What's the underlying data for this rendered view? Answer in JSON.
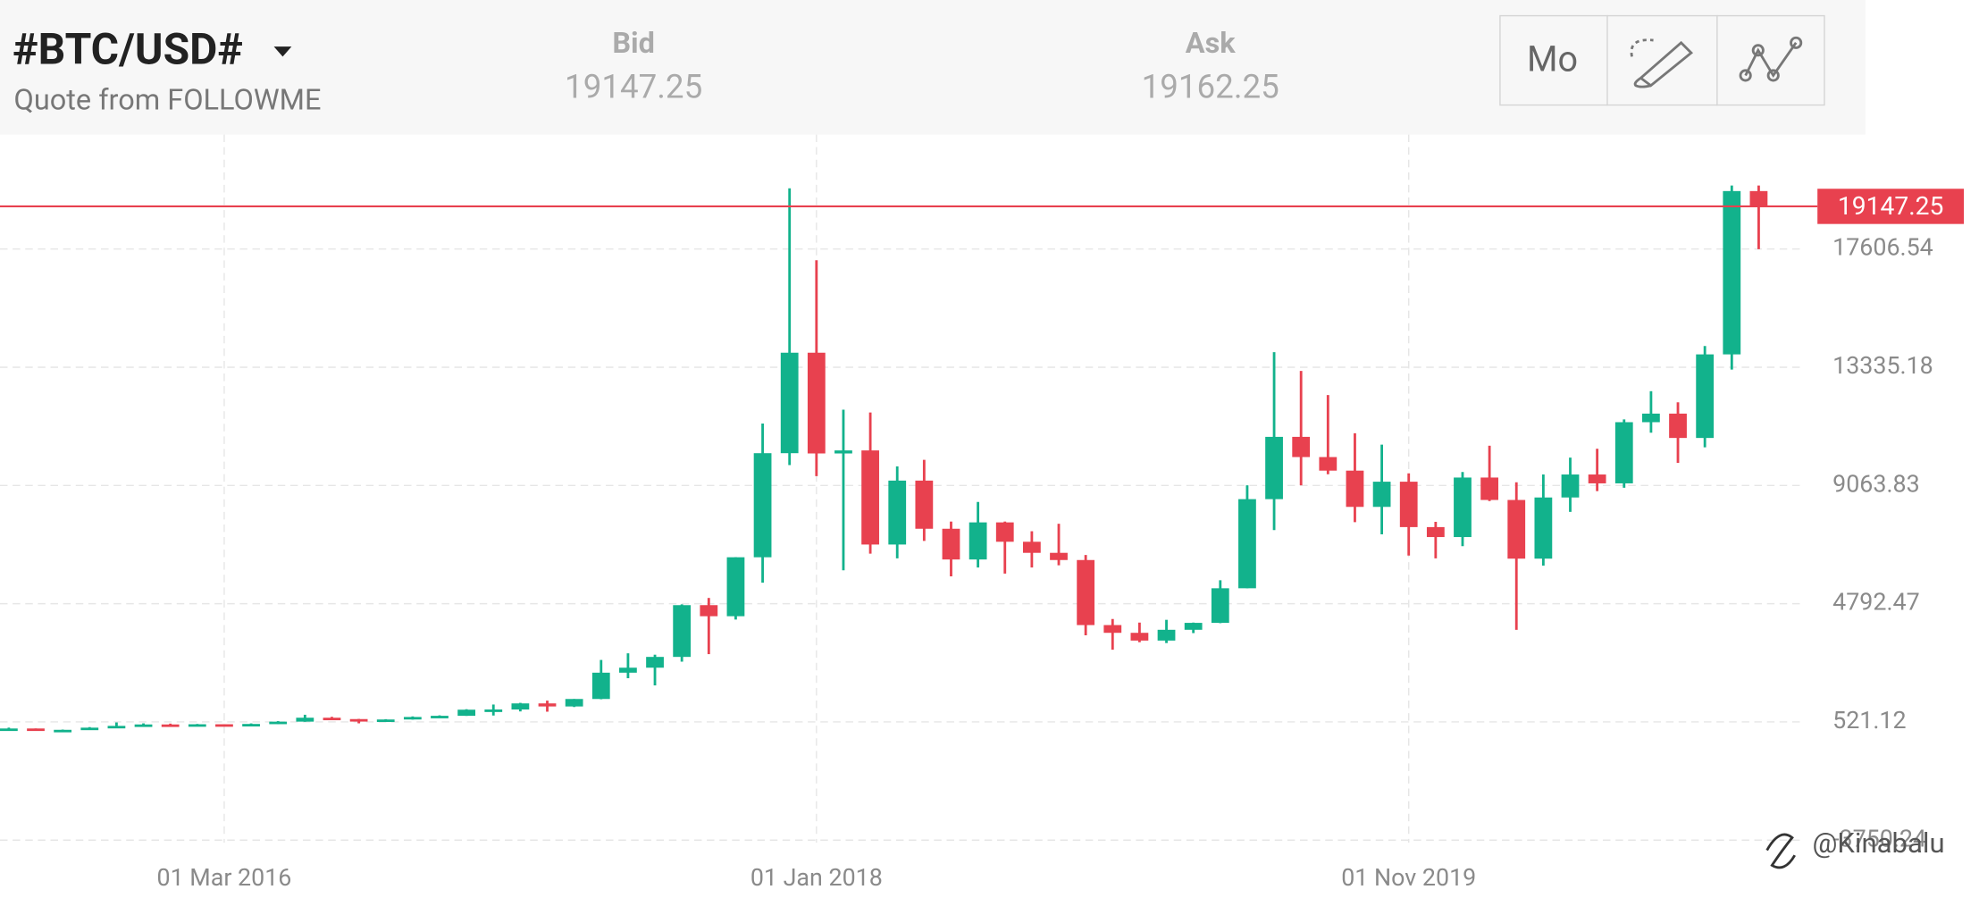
{
  "header": {
    "title": "#BTC/USD#",
    "subtitle": "Quote from FOLLOWME",
    "bid_label": "Bid",
    "bid": 19147.25,
    "ask_label": "Ask",
    "ask": 19162.25,
    "timeframe": "Mo"
  },
  "watermark": "@Kinabalu",
  "chart_data": {
    "type": "candlestick",
    "x": [
      "2015-07-01",
      "2015-08-01",
      "2015-09-01",
      "2015-10-01",
      "2015-11-01",
      "2015-12-01",
      "2016-01-01",
      "2016-02-01",
      "2016-03-01",
      "2016-04-01",
      "2016-05-01",
      "2016-06-01",
      "2016-07-01",
      "2016-08-01",
      "2016-09-01",
      "2016-10-01",
      "2016-11-01",
      "2016-12-01",
      "2017-01-01",
      "2017-02-01",
      "2017-03-01",
      "2017-04-01",
      "2017-05-01",
      "2017-06-01",
      "2017-07-01",
      "2017-08-01",
      "2017-09-01",
      "2017-10-01",
      "2017-11-01",
      "2017-12-01",
      "2018-01-01",
      "2018-02-01",
      "2018-03-01",
      "2018-04-01",
      "2018-05-01",
      "2018-06-01",
      "2018-07-01",
      "2018-08-01",
      "2018-09-01",
      "2018-10-01",
      "2018-11-01",
      "2018-12-01",
      "2019-01-01",
      "2019-02-01",
      "2019-03-01",
      "2019-04-01",
      "2019-05-01",
      "2019-06-01",
      "2019-07-01",
      "2019-08-01",
      "2019-09-01",
      "2019-10-01",
      "2019-11-01",
      "2019-12-01",
      "2020-01-01",
      "2020-02-01",
      "2020-03-01",
      "2020-04-01",
      "2020-05-01",
      "2020-06-01",
      "2020-07-01",
      "2020-08-01",
      "2020-09-01",
      "2020-10-01",
      "2020-11-01",
      "2020-12-01"
    ],
    "open": [
      263,
      284,
      230,
      236,
      314,
      378,
      430,
      369,
      437,
      416,
      448,
      531,
      673,
      624,
      574,
      609,
      700,
      742,
      963,
      970,
      1190,
      1080,
      1350,
      2300,
      2480,
      2870,
      4740,
      4340,
      6470,
      10230,
      13860,
      10220,
      10330,
      6930,
      9240,
      7500,
      6390,
      7730,
      7030,
      6630,
      6370,
      4020,
      3740,
      3460,
      3850,
      4100,
      5350,
      8570,
      10820,
      10090,
      9600,
      8290,
      9200,
      7560,
      7200,
      9350,
      8540,
      6420,
      8630,
      9460,
      9140,
      11350,
      11660,
      10780,
      13800,
      19700
    ],
    "high": [
      315,
      285,
      245,
      334,
      502,
      469,
      460,
      448,
      439,
      467,
      550,
      780,
      705,
      630,
      620,
      720,
      758,
      980,
      1150,
      1210,
      1290,
      1350,
      2760,
      3000,
      2950,
      4770,
      5000,
      6470,
      11300,
      19800,
      17200,
      11800,
      11700,
      9750,
      9990,
      7760,
      8470,
      7760,
      7410,
      7680,
      6550,
      4240,
      4110,
      4210,
      4110,
      5640,
      9070,
      13880,
      13200,
      12330,
      10950,
      10540,
      9500,
      7750,
      9550,
      10500,
      9180,
      9460,
      10070,
      10390,
      11450,
      12470,
      12070,
      14100,
      19900,
      19900
    ],
    "low": [
      256,
      199,
      225,
      235,
      304,
      352,
      355,
      365,
      393,
      413,
      440,
      525,
      605,
      470,
      575,
      605,
      680,
      740,
      752,
      900,
      890,
      1060,
      1340,
      2100,
      1840,
      2700,
      2970,
      4220,
      5550,
      9800,
      9400,
      6000,
      6600,
      6430,
      7060,
      5780,
      6100,
      5880,
      6100,
      6180,
      3650,
      3130,
      3400,
      3370,
      3730,
      4090,
      5350,
      7450,
      9070,
      9470,
      7740,
      7300,
      6530,
      6430,
      6870,
      8500,
      3850,
      6170,
      8110,
      8860,
      8980,
      10970,
      9880,
      10440,
      13250,
      17600
    ],
    "close": [
      284,
      230,
      236,
      314,
      378,
      430,
      369,
      437,
      416,
      448,
      531,
      673,
      624,
      574,
      609,
      700,
      742,
      963,
      970,
      1190,
      1080,
      1350,
      2300,
      2480,
      2870,
      4740,
      4340,
      6470,
      10230,
      13860,
      10220,
      10330,
      6930,
      9240,
      7500,
      6390,
      7730,
      7030,
      6630,
      6370,
      4020,
      3740,
      3460,
      3850,
      4100,
      5350,
      8570,
      10820,
      10090,
      9600,
      8290,
      9200,
      7560,
      7200,
      9350,
      8540,
      6420,
      8630,
      9460,
      9140,
      11350,
      11660,
      10780,
      13800,
      19700,
      19147.25
    ],
    "up_color": "#12b28c",
    "down_color": "#e8414f",
    "ylim": [
      -3841,
      21741
    ],
    "yticks": [
      -3750.24,
      521.12,
      4792.47,
      9063.83,
      13335.18,
      17606.54
    ],
    "xticks": [
      {
        "value": "2016-03-01",
        "label": "01 Mar 2016"
      },
      {
        "value": "2018-01-01",
        "label": "01 Jan 2018"
      },
      {
        "value": "2019-11-01",
        "label": "01 Nov 2019"
      }
    ],
    "grid": true,
    "price_line": {
      "value": 19147.25,
      "color": "#e8414f"
    }
  }
}
